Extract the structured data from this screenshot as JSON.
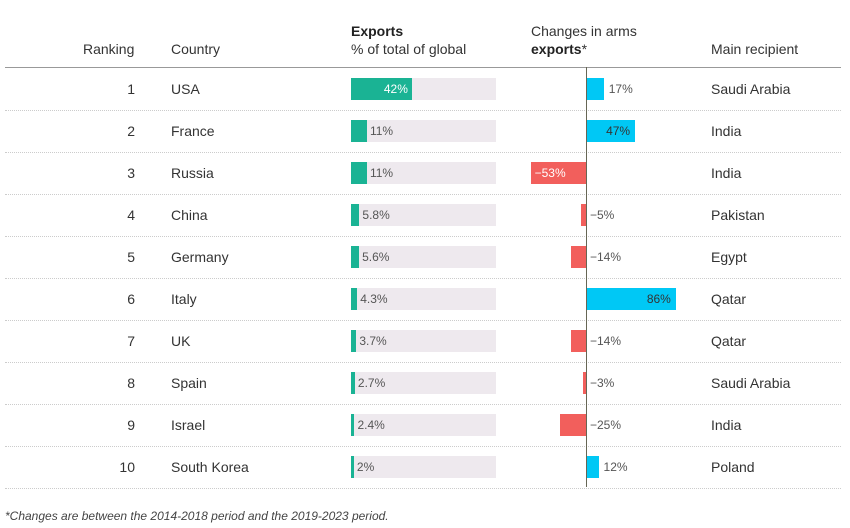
{
  "headers": {
    "ranking": "Ranking",
    "country": "Country",
    "exports_bold": "Exports",
    "exports_sub": "% of total of global",
    "changes_line1": "Changes in arms",
    "changes_bold": "exports",
    "changes_star": "*",
    "recipient": "Main recipient"
  },
  "colors": {
    "exports": "#1ab394",
    "increase": "#00c8f5",
    "decrease": "#f25f5c",
    "track": "#eee9ee"
  },
  "chart_data": {
    "type": "table",
    "rows": [
      {
        "rank": "1",
        "country": "USA",
        "share": 42,
        "share_label": "42%",
        "change": 17,
        "change_label": "17%",
        "recipient": "Saudi Arabia"
      },
      {
        "rank": "2",
        "country": "France",
        "share": 11,
        "share_label": "11%",
        "change": 47,
        "change_label": "47%",
        "recipient": "India"
      },
      {
        "rank": "3",
        "country": "Russia",
        "share": 11,
        "share_label": "11%",
        "change": -53,
        "change_label": "−53%",
        "recipient": "India"
      },
      {
        "rank": "4",
        "country": "China",
        "share": 5.8,
        "share_label": "5.8%",
        "change": -5,
        "change_label": "−5%",
        "recipient": "Pakistan"
      },
      {
        "rank": "5",
        "country": "Germany",
        "share": 5.6,
        "share_label": "5.6%",
        "change": -14,
        "change_label": "−14%",
        "recipient": "Egypt"
      },
      {
        "rank": "6",
        "country": "Italy",
        "share": 4.3,
        "share_label": "4.3%",
        "change": 86,
        "change_label": "86%",
        "recipient": "Qatar"
      },
      {
        "rank": "7",
        "country": "UK",
        "share": 3.7,
        "share_label": "3.7%",
        "change": -14,
        "change_label": "−14%",
        "recipient": "Qatar"
      },
      {
        "rank": "8",
        "country": "Spain",
        "share": 2.7,
        "share_label": "2.7%",
        "change": -3,
        "change_label": "−3%",
        "recipient": "Saudi Arabia"
      },
      {
        "rank": "9",
        "country": "Israel",
        "share": 2.4,
        "share_label": "2.4%",
        "change": -25,
        "change_label": "−25%",
        "recipient": "India"
      },
      {
        "rank": "10",
        "country": "South Korea",
        "share": 2,
        "share_label": "2%",
        "change": 12,
        "change_label": "12%",
        "recipient": "Poland"
      }
    ]
  },
  "footnote": "*Changes are between the 2014-2018 period and the 2019-2023 period."
}
